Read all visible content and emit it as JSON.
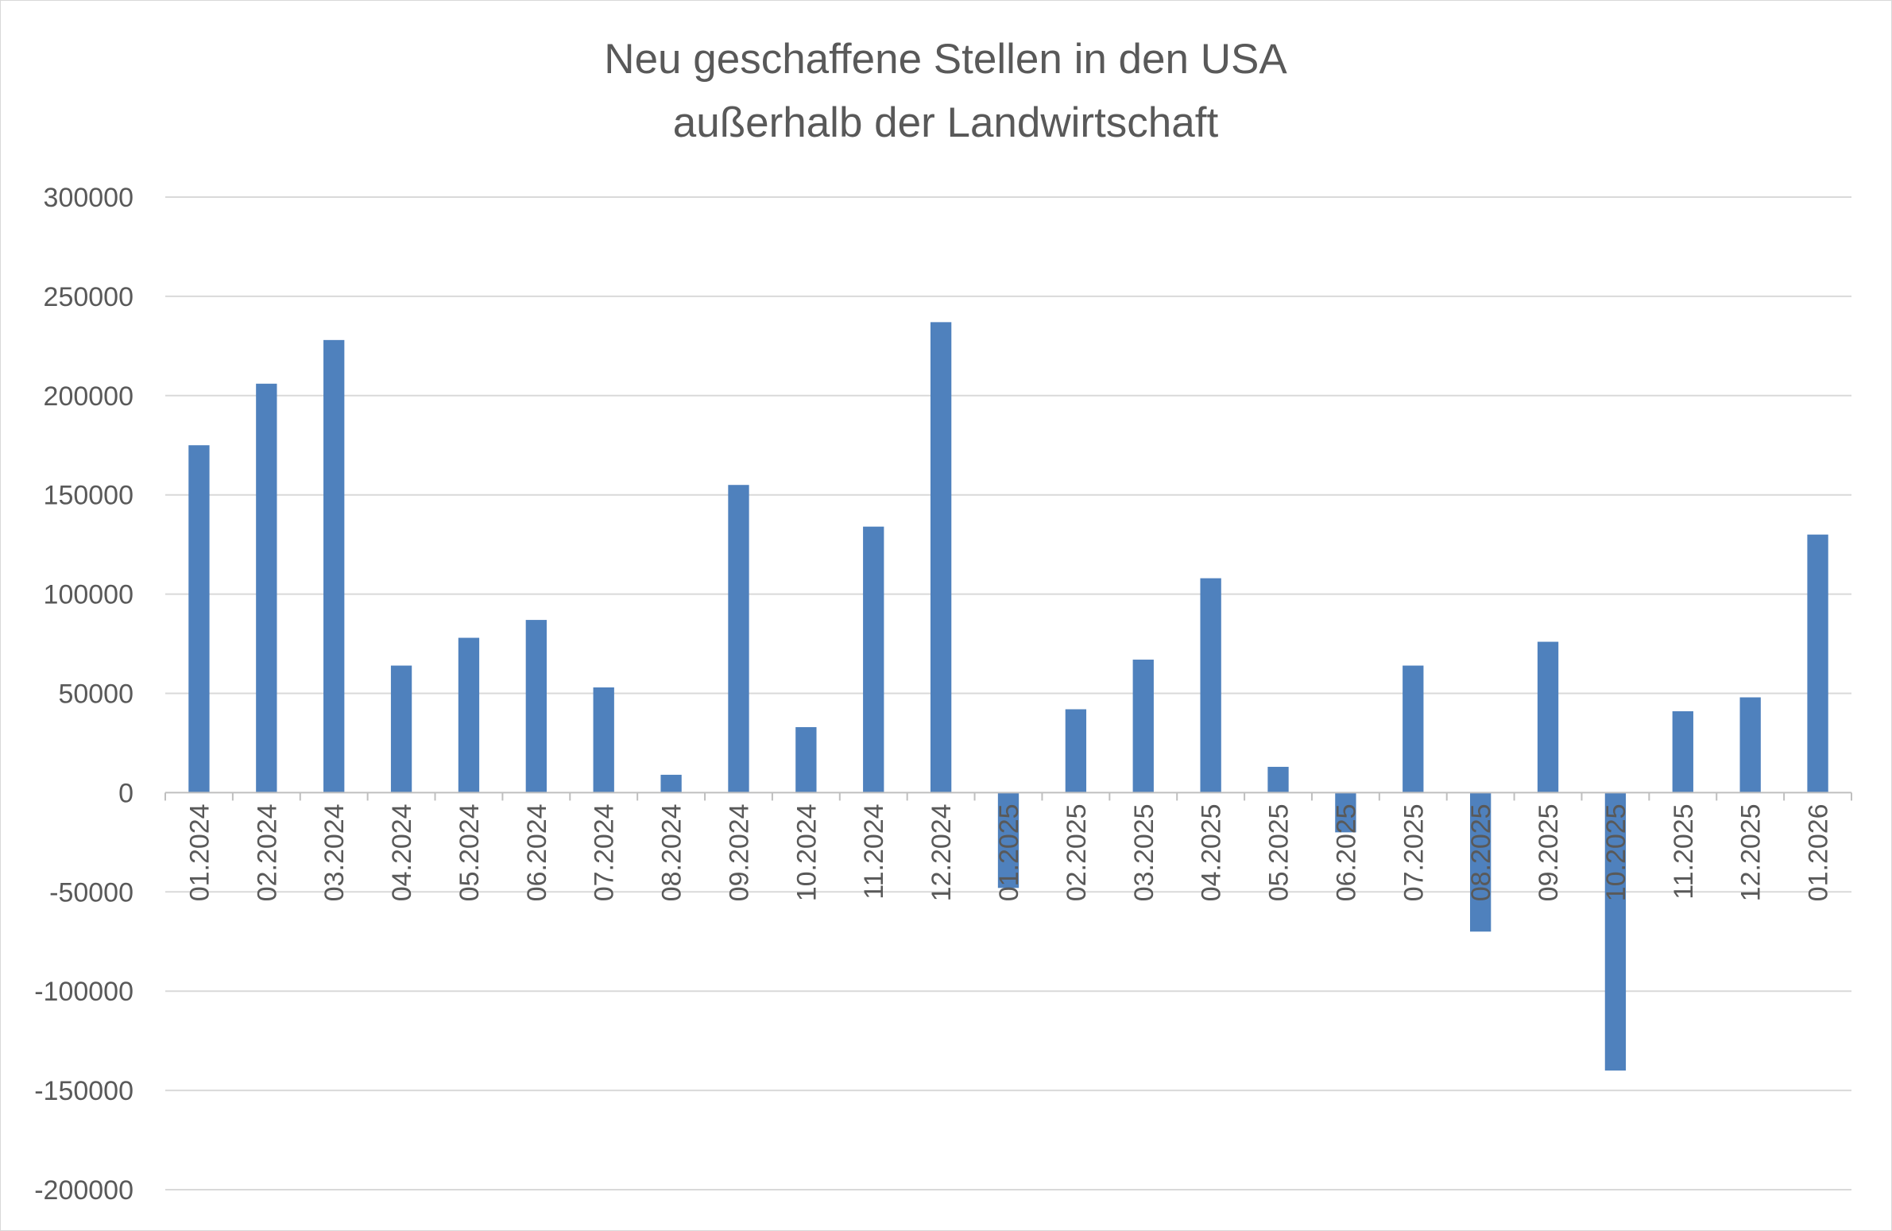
{
  "chart_data": {
    "type": "bar",
    "title": "Neu geschaffene Stellen in den USA",
    "subtitle": "außerhalb der Landwirtschaft",
    "xlabel": "",
    "ylabel": "",
    "categories": [
      "01.2024",
      "02.2024",
      "03.2024",
      "04.2024",
      "05.2024",
      "06.2024",
      "07.2024",
      "08.2024",
      "09.2024",
      "10.2024",
      "11.2024",
      "12.2024",
      "01.2025",
      "02.2025",
      "03.2025",
      "04.2025",
      "05.2025",
      "06.2025",
      "07.2025",
      "08.2025",
      "09.2025",
      "10.2025",
      "11.2025",
      "12.2025",
      "01.2026"
    ],
    "values": [
      175000,
      206000,
      228000,
      64000,
      78000,
      87000,
      53000,
      9000,
      155000,
      33000,
      134000,
      237000,
      -48000,
      42000,
      67000,
      108000,
      13000,
      -20000,
      64000,
      -70000,
      76000,
      -140000,
      41000,
      48000,
      130000
    ],
    "ylim": [
      -200000,
      300000
    ],
    "yticks": [
      "300000",
      "250000",
      "200000",
      "150000",
      "100000",
      "50000",
      "0",
      "-50000",
      "-100000",
      "-150000",
      "-200000"
    ],
    "grid": true,
    "legend": "none",
    "bar_color": "#4f81bd",
    "grid_color": "#d9d9d9",
    "axis_color": "#bfbfbf"
  }
}
